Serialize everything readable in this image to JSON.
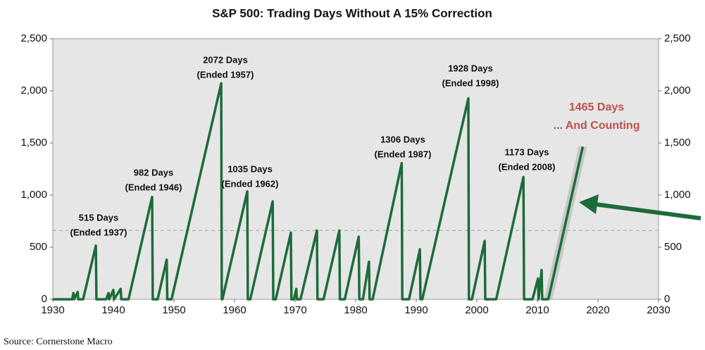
{
  "chart_data": {
    "type": "line",
    "title": "S&P 500: Trading Days Without A 15% Correction",
    "source": "Source: Cornerstone Macro",
    "series": [
      {
        "color": "#1e6b3a",
        "x": [
          1930,
          1933.2,
          1933.4,
          1933.5,
          1934.1,
          1934.2,
          1935,
          1937.1,
          1937.2,
          1938.8,
          1939.2,
          1939.3,
          1940,
          1940.1,
          1941.2,
          1941.3,
          1942.5,
          1946.4,
          1946.5,
          1947.3,
          1948.8,
          1948.9,
          1949.6,
          1957.8,
          1957.9,
          1958,
          1962.1,
          1962.2,
          1962.6,
          1966.3,
          1966.4,
          1966.8,
          1969.3,
          1969.4,
          1969.8,
          1970.2,
          1970.3,
          1970.9,
          1973.6,
          1973.7,
          1974.7,
          1977.3,
          1977.4,
          1978.2,
          1980.5,
          1980.6,
          1981.2,
          1982.2,
          1982.3,
          1982.8,
          1987.6,
          1987.7,
          1988.8,
          1990.6,
          1990.7,
          1991,
          1998.6,
          1998.7,
          1999.2,
          2001.3,
          2001.4,
          2003.2,
          2007.7,
          2007.8,
          2009.2,
          2010.1,
          2010.2,
          2010.7,
          2010.8,
          2011.8,
          2017.5
        ],
        "values": [
          0,
          0,
          60,
          0,
          70,
          0,
          0,
          515,
          0,
          0,
          60,
          0,
          90,
          0,
          100,
          0,
          0,
          982,
          0,
          0,
          380,
          0,
          0,
          2072,
          0,
          0,
          1035,
          0,
          0,
          940,
          0,
          0,
          640,
          0,
          0,
          100,
          0,
          0,
          660,
          0,
          0,
          660,
          0,
          0,
          600,
          0,
          0,
          360,
          0,
          0,
          1306,
          0,
          0,
          480,
          0,
          0,
          1928,
          0,
          0,
          560,
          0,
          0,
          1173,
          0,
          0,
          200,
          0,
          280,
          0,
          0,
          1465
        ]
      }
    ],
    "reference_line": 660,
    "xlim": [
      1930,
      2030
    ],
    "xticks": [
      1930,
      1940,
      1950,
      1960,
      1970,
      1980,
      1990,
      2000,
      2010,
      2020,
      2030
    ],
    "ylim": [
      0,
      2500
    ],
    "yticks": [
      0,
      500,
      {
        "value": 1000,
        "label": "1,000"
      },
      {
        "value": 1500,
        "label": "1,500"
      },
      {
        "value": 2000,
        "label": "2,000"
      },
      {
        "value": 2500,
        "label": "2,500"
      }
    ],
    "annotations": [
      {
        "lines": [
          "515 Days",
          "(Ended 1937)"
        ]
      },
      {
        "lines": [
          "982 Days",
          "(Ended 1946)"
        ]
      },
      {
        "lines": [
          "2072 Days",
          "(Ended 1957)"
        ]
      },
      {
        "lines": [
          "1035 Days",
          "(Ended 1962)"
        ]
      },
      {
        "lines": [
          "1306 Days",
          "(Ended 1987)"
        ]
      },
      {
        "lines": [
          "1928 Days",
          "(Ended 1998)"
        ]
      },
      {
        "lines": [
          "1173 Days",
          "(Ended 2008)"
        ]
      },
      {
        "lines": [
          "1465  Days",
          "... And Counting"
        ],
        "color": "#c0504d"
      }
    ]
  }
}
